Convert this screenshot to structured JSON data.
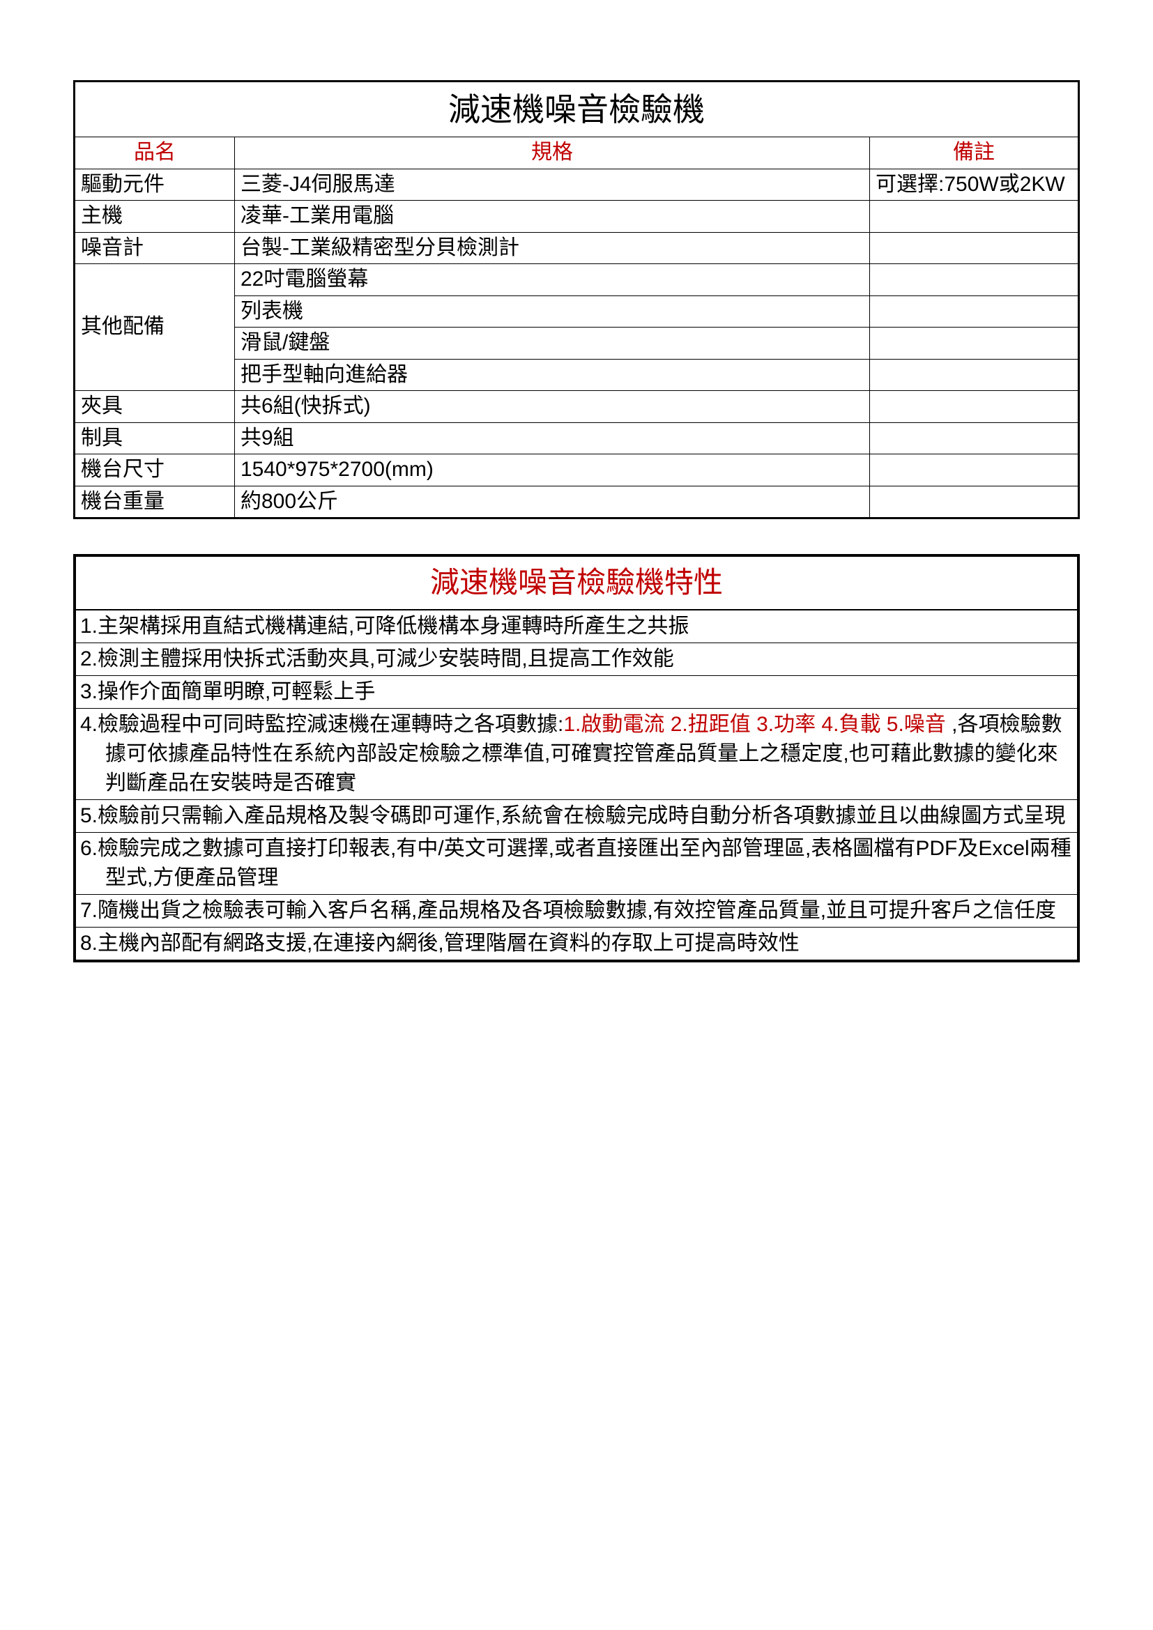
{
  "spec": {
    "title": "減速機噪音檢驗機",
    "headers": {
      "col1": "品名",
      "col2": "規格",
      "col3": "備註"
    },
    "rows": [
      {
        "name": "驅動元件",
        "spec": "三菱-J4伺服馬達",
        "note": "可選擇:750W或2KW"
      },
      {
        "name": "主機",
        "spec": "凌華-工業用電腦",
        "note": ""
      },
      {
        "name": "噪音計",
        "spec": "台製-工業級精密型分貝檢測計",
        "note": ""
      },
      {
        "name": "其他配備",
        "specs": [
          "22吋電腦螢幕",
          "列表機",
          "滑鼠/鍵盤",
          "把手型軸向進給器"
        ],
        "note": ""
      },
      {
        "name": "夾具",
        "spec": "共6組(快拆式)",
        "note": ""
      },
      {
        "name": "制具",
        "spec": "共9組",
        "note": ""
      },
      {
        "name": "機台尺寸",
        "spec": "1540*975*2700(mm)",
        "note": ""
      },
      {
        "name": "機台重量",
        "spec": "約800公斤",
        "note": ""
      }
    ]
  },
  "features": {
    "title": "減速機噪音檢驗機特性",
    "items": [
      "1.主架構採用直結式機構連結,可降低機構本身運轉時所產生之共振",
      "2.檢測主體採用快拆式活動夾具,可減少安裝時間,且提高工作效能",
      "3.操作介面簡單明瞭,可輕鬆上手",
      {
        "prefix": "4.檢驗過程中可同時監控減速機在運轉時之各項數據:",
        "red": "1.啟動電流 2.扭距值 3.功率 4.負載 5.噪音",
        "suffix": " ,各項檢驗數據可依據產品特性在系統內部設定檢驗之標準值,可確實控管產品質量上之穩定度,也可藉此數據的變化來判斷產品在安裝時是否確實"
      },
      "5.檢驗前只需輸入產品規格及製令碼即可運作,系統會在檢驗完成時自動分析各項數據並且以曲線圖方式呈現",
      "6.檢驗完成之數據可直接打印報表,有中/英文可選擇,或者直接匯出至內部管理區,表格圖檔有PDF及Excel兩種型式,方便產品管理",
      "7.隨機出貨之檢驗表可輸入客戶名稱,產品規格及各項檢驗數據,有效控管產品質量,並且可提升客戶之信任度",
      "8.主機內部配有網路支援,在連接內網後,管理階層在資料的存取上可提高時效性"
    ]
  },
  "styling": {
    "page_bg": "#ffffff",
    "border_color": "#000000",
    "text_color": "#000000",
    "header_text_color": "#c00000",
    "title_fontsize": 46,
    "body_fontsize": 30,
    "features_title_fontsize": 42,
    "outer_border_width": 3,
    "features_outer_border_width": 4
  }
}
